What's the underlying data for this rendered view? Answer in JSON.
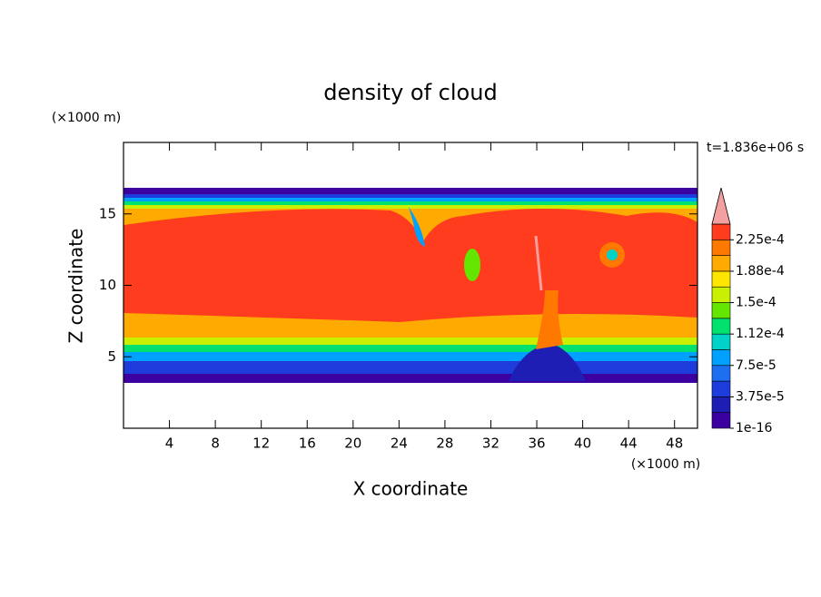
{
  "chart_data": {
    "type": "contour",
    "title": "density of cloud",
    "x_label": "X coordinate",
    "y_label": "Z coordinate",
    "x_unit": "(×1000 m)",
    "y_unit": "(×1000 m)",
    "time_label": "t=1.836e+06 s",
    "xlim": [
      0,
      50
    ],
    "ylim": [
      0,
      20
    ],
    "xticks": [
      4,
      8,
      12,
      16,
      20,
      24,
      28,
      32,
      36,
      40,
      44,
      48
    ],
    "yticks": [
      5,
      10,
      15
    ],
    "colorbar": {
      "colors": [
        "#3c00a0",
        "#1e1eb4",
        "#1e3cdc",
        "#1e6ef0",
        "#00a0ff",
        "#00d2c8",
        "#00e16e",
        "#64e600",
        "#c8f000",
        "#ffe600",
        "#ffaa00",
        "#ff7800",
        "#ff3c1e"
      ],
      "extend_color": "#f5a0a0",
      "ticks": [
        {
          "value": 1e-16,
          "label": "1e-16"
        },
        {
          "value": 3.75e-05,
          "label": "3.75e-5"
        },
        {
          "value": 7.5e-05,
          "label": "7.5e-5"
        },
        {
          "value": 0.000112,
          "label": "1.12e-4"
        },
        {
          "value": 0.00015,
          "label": "1.5e-4"
        },
        {
          "value": 0.000188,
          "label": "1.88e-4"
        },
        {
          "value": 0.000225,
          "label": "2.25e-4"
        }
      ]
    }
  }
}
